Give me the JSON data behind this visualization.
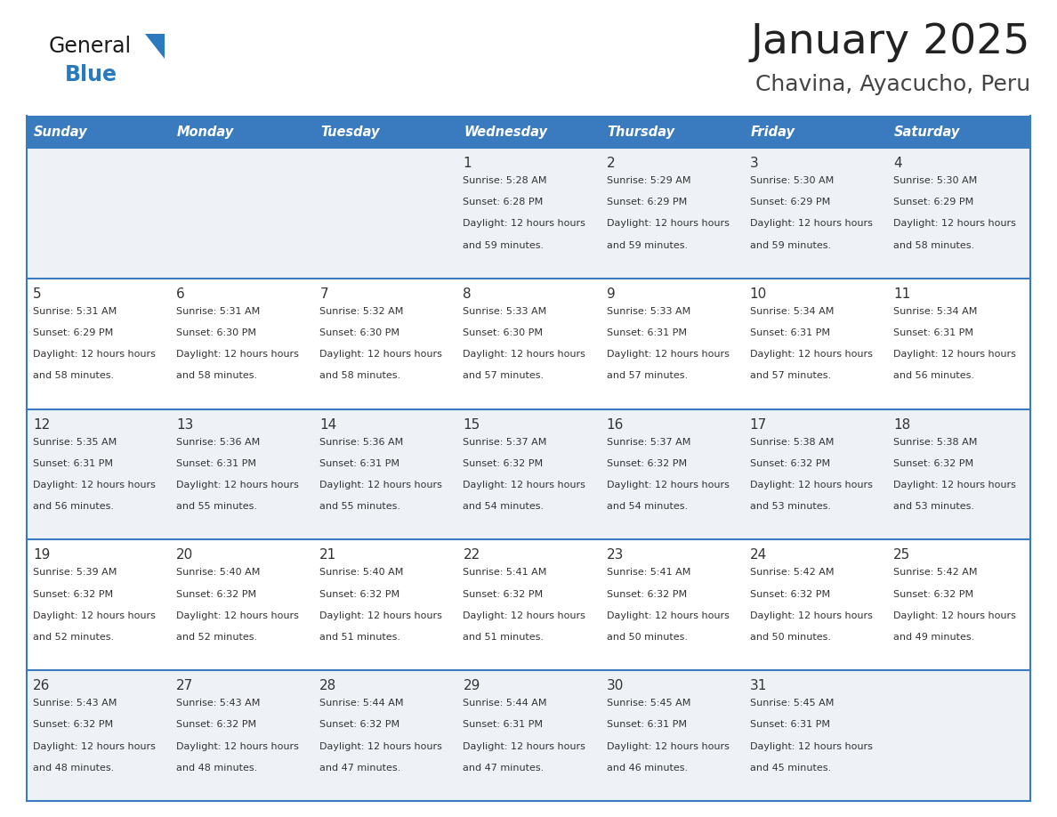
{
  "title": "January 2025",
  "subtitle": "Chavina, Ayacucho, Peru",
  "days_of_week": [
    "Sunday",
    "Monday",
    "Tuesday",
    "Wednesday",
    "Thursday",
    "Friday",
    "Saturday"
  ],
  "header_bg": "#3a7abf",
  "header_text": "#ffffff",
  "row_bg_odd": "#eef2f7",
  "row_bg_even": "#ffffff",
  "cell_border_color": "#3a7abf",
  "day_number_color": "#333333",
  "content_color": "#333333",
  "title_color": "#222222",
  "subtitle_color": "#444444",
  "logo_general_color": "#1a1a1a",
  "logo_blue_color": "#2a7abf",
  "calendar_data": [
    [
      null,
      null,
      null,
      {
        "day": 1,
        "sunrise": "5:28 AM",
        "sunset": "6:28 PM",
        "daylight": "12 hours and 59 minutes"
      },
      {
        "day": 2,
        "sunrise": "5:29 AM",
        "sunset": "6:29 PM",
        "daylight": "12 hours and 59 minutes"
      },
      {
        "day": 3,
        "sunrise": "5:30 AM",
        "sunset": "6:29 PM",
        "daylight": "12 hours and 59 minutes"
      },
      {
        "day": 4,
        "sunrise": "5:30 AM",
        "sunset": "6:29 PM",
        "daylight": "12 hours and 58 minutes"
      }
    ],
    [
      {
        "day": 5,
        "sunrise": "5:31 AM",
        "sunset": "6:29 PM",
        "daylight": "12 hours and 58 minutes"
      },
      {
        "day": 6,
        "sunrise": "5:31 AM",
        "sunset": "6:30 PM",
        "daylight": "12 hours and 58 minutes"
      },
      {
        "day": 7,
        "sunrise": "5:32 AM",
        "sunset": "6:30 PM",
        "daylight": "12 hours and 58 minutes"
      },
      {
        "day": 8,
        "sunrise": "5:33 AM",
        "sunset": "6:30 PM",
        "daylight": "12 hours and 57 minutes"
      },
      {
        "day": 9,
        "sunrise": "5:33 AM",
        "sunset": "6:31 PM",
        "daylight": "12 hours and 57 minutes"
      },
      {
        "day": 10,
        "sunrise": "5:34 AM",
        "sunset": "6:31 PM",
        "daylight": "12 hours and 57 minutes"
      },
      {
        "day": 11,
        "sunrise": "5:34 AM",
        "sunset": "6:31 PM",
        "daylight": "12 hours and 56 minutes"
      }
    ],
    [
      {
        "day": 12,
        "sunrise": "5:35 AM",
        "sunset": "6:31 PM",
        "daylight": "12 hours and 56 minutes"
      },
      {
        "day": 13,
        "sunrise": "5:36 AM",
        "sunset": "6:31 PM",
        "daylight": "12 hours and 55 minutes"
      },
      {
        "day": 14,
        "sunrise": "5:36 AM",
        "sunset": "6:31 PM",
        "daylight": "12 hours and 55 minutes"
      },
      {
        "day": 15,
        "sunrise": "5:37 AM",
        "sunset": "6:32 PM",
        "daylight": "12 hours and 54 minutes"
      },
      {
        "day": 16,
        "sunrise": "5:37 AM",
        "sunset": "6:32 PM",
        "daylight": "12 hours and 54 minutes"
      },
      {
        "day": 17,
        "sunrise": "5:38 AM",
        "sunset": "6:32 PM",
        "daylight": "12 hours and 53 minutes"
      },
      {
        "day": 18,
        "sunrise": "5:38 AM",
        "sunset": "6:32 PM",
        "daylight": "12 hours and 53 minutes"
      }
    ],
    [
      {
        "day": 19,
        "sunrise": "5:39 AM",
        "sunset": "6:32 PM",
        "daylight": "12 hours and 52 minutes"
      },
      {
        "day": 20,
        "sunrise": "5:40 AM",
        "sunset": "6:32 PM",
        "daylight": "12 hours and 52 minutes"
      },
      {
        "day": 21,
        "sunrise": "5:40 AM",
        "sunset": "6:32 PM",
        "daylight": "12 hours and 51 minutes"
      },
      {
        "day": 22,
        "sunrise": "5:41 AM",
        "sunset": "6:32 PM",
        "daylight": "12 hours and 51 minutes"
      },
      {
        "day": 23,
        "sunrise": "5:41 AM",
        "sunset": "6:32 PM",
        "daylight": "12 hours and 50 minutes"
      },
      {
        "day": 24,
        "sunrise": "5:42 AM",
        "sunset": "6:32 PM",
        "daylight": "12 hours and 50 minutes"
      },
      {
        "day": 25,
        "sunrise": "5:42 AM",
        "sunset": "6:32 PM",
        "daylight": "12 hours and 49 minutes"
      }
    ],
    [
      {
        "day": 26,
        "sunrise": "5:43 AM",
        "sunset": "6:32 PM",
        "daylight": "12 hours and 48 minutes"
      },
      {
        "day": 27,
        "sunrise": "5:43 AM",
        "sunset": "6:32 PM",
        "daylight": "12 hours and 48 minutes"
      },
      {
        "day": 28,
        "sunrise": "5:44 AM",
        "sunset": "6:32 PM",
        "daylight": "12 hours and 47 minutes"
      },
      {
        "day": 29,
        "sunrise": "5:44 AM",
        "sunset": "6:31 PM",
        "daylight": "12 hours and 47 minutes"
      },
      {
        "day": 30,
        "sunrise": "5:45 AM",
        "sunset": "6:31 PM",
        "daylight": "12 hours and 46 minutes"
      },
      {
        "day": 31,
        "sunrise": "5:45 AM",
        "sunset": "6:31 PM",
        "daylight": "12 hours and 45 minutes"
      },
      null
    ]
  ]
}
